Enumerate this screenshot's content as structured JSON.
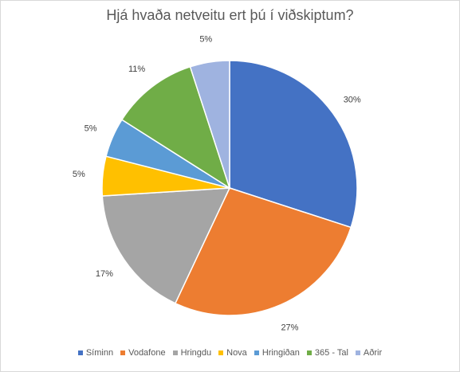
{
  "chart_data": {
    "type": "pie",
    "title": "Hjá hvaða netveitu ert þú í viðskiptum?",
    "categories": [
      "Síminn",
      "Vodafone",
      "Hringdu",
      "Nova",
      "Hringiðan",
      "365 - Tal",
      "Aðrir"
    ],
    "values": [
      30,
      27,
      17,
      5,
      5,
      11,
      5
    ],
    "labels": [
      "30%",
      "27%",
      "17%",
      "5%",
      "5%",
      "11%",
      "5%"
    ],
    "colors": [
      "#4472c4",
      "#ed7d31",
      "#a5a5a5",
      "#ffc000",
      "#5b9bd5",
      "#70ad47",
      "#9fb3e0"
    ],
    "legend": "bottom"
  }
}
